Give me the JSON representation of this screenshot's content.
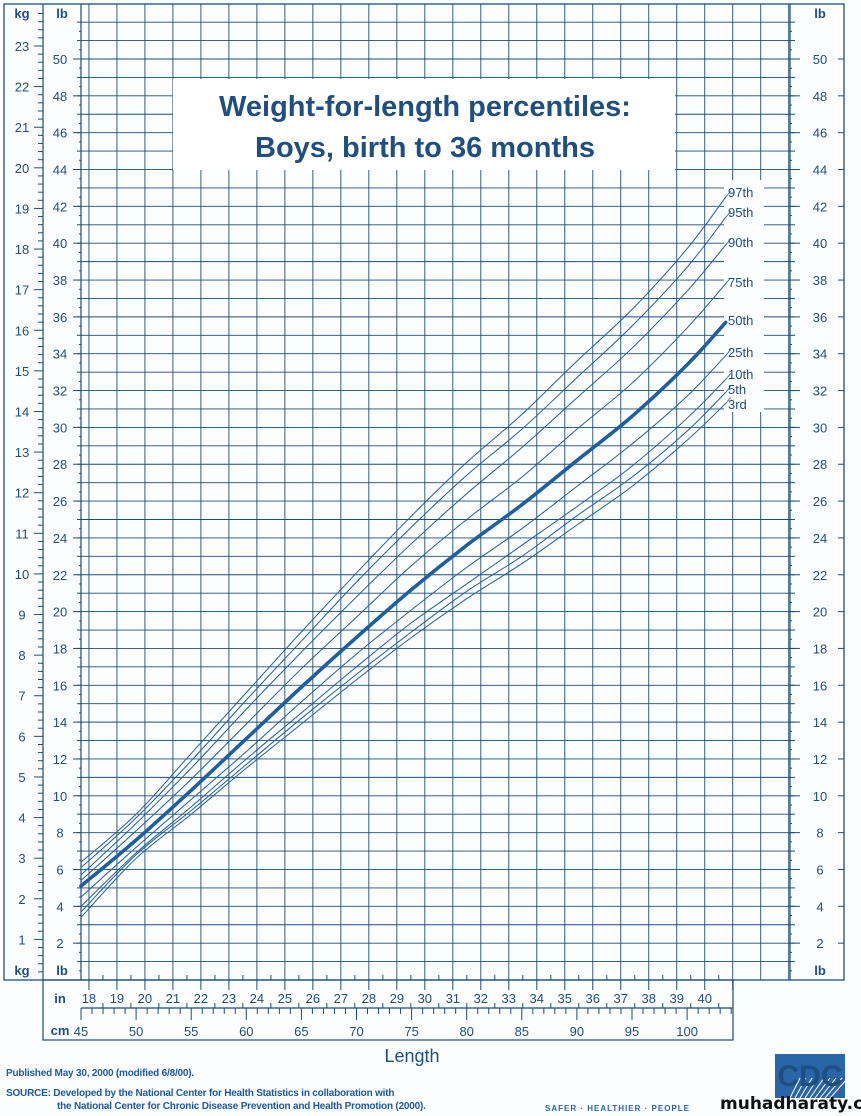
{
  "chart_data": {
    "type": "line",
    "title": [
      "Weight-for-length percentiles:",
      "Boys, birth to 36 months"
    ],
    "xlabel": "Length",
    "x_units": [
      "in",
      "cm"
    ],
    "y_units": [
      "kg",
      "lb"
    ],
    "xlim_cm": [
      45,
      109.2
    ],
    "ylim_lb": [
      0,
      53
    ],
    "grid": true,
    "x": [
      45,
      50,
      55,
      60,
      65,
      70,
      75,
      80,
      85,
      90,
      95,
      100,
      103.5
    ],
    "series": [
      {
        "name": "97th",
        "values": [
          6.4,
          9.0,
          12.3,
          15.6,
          18.9,
          22.1,
          25.2,
          28.1,
          30.7,
          33.6,
          36.4,
          39.7,
          42.5
        ]
      },
      {
        "name": "95th",
        "values": [
          6.1,
          8.8,
          11.9,
          15.2,
          18.4,
          21.6,
          24.6,
          27.4,
          29.9,
          32.7,
          35.5,
          38.7,
          41.4
        ]
      },
      {
        "name": "90th",
        "values": [
          5.7,
          8.5,
          11.5,
          14.7,
          17.8,
          20.8,
          23.7,
          26.4,
          28.9,
          31.6,
          34.3,
          37.4,
          39.9
        ]
      },
      {
        "name": "75th",
        "values": [
          5.4,
          8.1,
          10.9,
          13.9,
          16.9,
          19.7,
          22.5,
          25.0,
          27.3,
          29.9,
          32.4,
          35.4,
          37.8
        ]
      },
      {
        "name": "50th",
        "values": [
          5.1,
          7.6,
          10.3,
          13.1,
          15.9,
          18.6,
          21.2,
          23.6,
          25.8,
          28.2,
          30.6,
          33.4,
          35.7
        ],
        "bold": true
      },
      {
        "name": "25th",
        "values": [
          4.5,
          7.2,
          9.8,
          12.4,
          15.1,
          17.7,
          20.1,
          22.4,
          24.5,
          26.8,
          29.1,
          31.7,
          33.9
        ]
      },
      {
        "name": "10th",
        "values": [
          4.0,
          6.9,
          9.4,
          12.0,
          14.5,
          17.0,
          19.4,
          21.5,
          23.6,
          25.7,
          27.9,
          30.5,
          32.6
        ]
      },
      {
        "name": "5th",
        "values": [
          3.7,
          6.8,
          9.2,
          11.7,
          14.2,
          16.6,
          18.9,
          21.1,
          23.0,
          25.2,
          27.3,
          29.8,
          31.9
        ]
      },
      {
        "name": "3rd",
        "values": [
          3.4,
          6.6,
          9.0,
          11.5,
          13.9,
          16.3,
          18.6,
          20.7,
          22.6,
          24.7,
          26.8,
          29.3,
          31.3
        ]
      }
    ],
    "kg_ticks": [
      1,
      2,
      3,
      4,
      5,
      6,
      7,
      8,
      9,
      10,
      11,
      12,
      13,
      14,
      15,
      16,
      17,
      18,
      19,
      20,
      21,
      22,
      23
    ],
    "lb_ticks": [
      2,
      4,
      6,
      8,
      10,
      12,
      14,
      16,
      18,
      20,
      22,
      24,
      26,
      28,
      30,
      32,
      34,
      36,
      38,
      40,
      42,
      44,
      46,
      48,
      50
    ],
    "in_ticks": [
      18,
      19,
      20,
      21,
      22,
      23,
      24,
      25,
      26,
      27,
      28,
      29,
      30,
      31,
      32,
      33,
      34,
      35,
      36,
      37,
      38,
      39,
      40
    ],
    "cm_ticks": [
      45,
      50,
      55,
      60,
      65,
      70,
      75,
      80,
      85,
      90,
      95,
      100
    ]
  },
  "colors": {
    "grid": "#1c4d78",
    "curve": "#1f5f9e",
    "title": "#1d5fa0",
    "label": "#1f4f80"
  },
  "footer": {
    "published": "Published May 30, 2000 (modified 6/8/00).",
    "source_line1": "SOURCE: Developed by the National Center for Health Statistics in collaboration with",
    "source_line2": "the National Center for Chronic Disease Prevention and Health Promotion (2000)."
  },
  "logo": {
    "text": "CDC",
    "tagline": "SAFER · HEALTHIER · PEOPLE"
  },
  "watermark": "muhadharaty.com"
}
